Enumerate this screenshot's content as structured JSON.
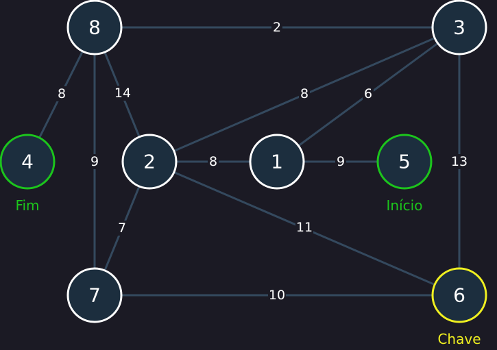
{
  "colors": {
    "background": "#1b1a24",
    "edge": "#34495e",
    "node_fill": "#1c2e3e",
    "node_stroke_default": "#ffffff",
    "start_end_stroke": "#1cc51c",
    "key_stroke": "#f0f020"
  },
  "nodes": [
    {
      "id": "8",
      "label": "8",
      "role": "default"
    },
    {
      "id": "3",
      "label": "3",
      "role": "default"
    },
    {
      "id": "4",
      "label": "4",
      "role": "end",
      "tag": "Fim"
    },
    {
      "id": "2",
      "label": "2",
      "role": "default"
    },
    {
      "id": "1",
      "label": "1",
      "role": "default"
    },
    {
      "id": "5",
      "label": "5",
      "role": "start",
      "tag": "Início"
    },
    {
      "id": "7",
      "label": "7",
      "role": "default"
    },
    {
      "id": "6",
      "label": "6",
      "role": "key",
      "tag": "Chave"
    }
  ],
  "edges": [
    {
      "from": "8",
      "to": "3",
      "weight": "2"
    },
    {
      "from": "8",
      "to": "4",
      "weight": "8"
    },
    {
      "from": "8",
      "to": "2",
      "weight": "14"
    },
    {
      "from": "8",
      "to": "7",
      "weight": "9"
    },
    {
      "from": "3",
      "to": "2",
      "weight": "8"
    },
    {
      "from": "3",
      "to": "1",
      "weight": "6"
    },
    {
      "from": "3",
      "to": "6",
      "weight": "13"
    },
    {
      "from": "2",
      "to": "1",
      "weight": "8"
    },
    {
      "from": "1",
      "to": "5",
      "weight": "9"
    },
    {
      "from": "2",
      "to": "7",
      "weight": "7"
    },
    {
      "from": "2",
      "to": "6",
      "weight": "11"
    },
    {
      "from": "7",
      "to": "6",
      "weight": "10"
    }
  ]
}
